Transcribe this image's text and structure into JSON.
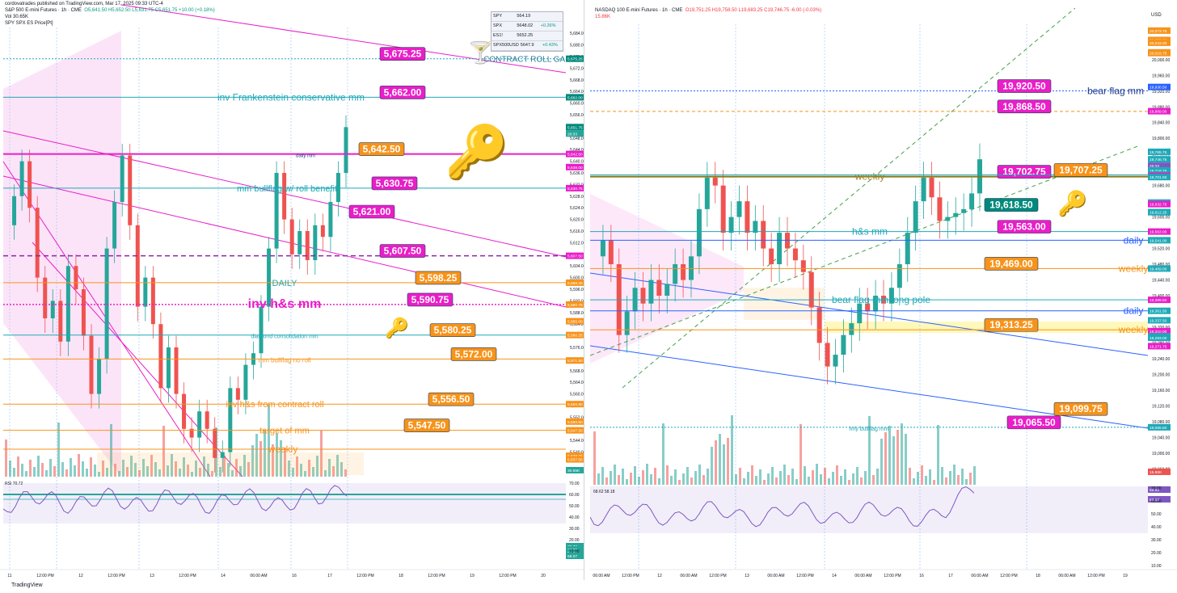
{
  "left": {
    "header": {
      "publisher": "cordovatrades published on TradingView.com, Mar 17, 2025 09:33 UTC-4",
      "title": "S&P 500 E-mini Futures · 1h · CME",
      "ohlc": "O5,641.50 H5,652.50 L5,631.75 C5,651.75 +10.00 (+0.18%)",
      "vol": "Vol  30.65K",
      "overlay": "SPY SPX ES Price[Pt]"
    },
    "quote_table": [
      {
        "sym": "SPY",
        "val": "564.19",
        "chg": ""
      },
      {
        "sym": "SPX",
        "val": "5648.02",
        "chg": "+0.26%"
      },
      {
        "sym": "ES1!",
        "val": "5652.25",
        "chg": ""
      },
      {
        "sym": "SPX500USD",
        "val": "5647.9",
        "chg": "+0.43%"
      }
    ],
    "rsi_label": "RSI  70.72",
    "x_ticks": [
      "11",
      "12:00 PM",
      "12",
      "12:00 PM",
      "13",
      "12:00 PM",
      "14",
      "06:00 AM",
      "16",
      "17",
      "12:00 PM",
      "18",
      "12:00 PM",
      "19",
      "12:00 PM",
      "20"
    ],
    "y_ticks": [
      "5,684.00",
      "5,680.00",
      "5,676.00",
      "5,672.00",
      "5,668.00",
      "5,664.00",
      "5,660.00",
      "5,656.00",
      "5,652.00",
      "5,648.00",
      "5,644.00",
      "5,640.00",
      "5,636.00",
      "5,632.00",
      "5,628.00",
      "5,624.00",
      "5,620.00",
      "5,616.00",
      "5,612.00",
      "5,608.00",
      "5,604.00",
      "5,600.00",
      "5,596.00",
      "5,592.00",
      "5,588.00",
      "5,584.00",
      "5,580.00",
      "5,576.00",
      "5,572.00",
      "5,568.00",
      "5,564.00",
      "5,560.00",
      "5,556.00",
      "5,552.00",
      "5,548.00",
      "5,544.00",
      "5,540.00"
    ],
    "rsi_ticks": [
      "70.00",
      "60.00",
      "50.00",
      "40.00",
      "30.00",
      "20.00",
      "10.00"
    ],
    "axis_tags": [
      "5,675.25",
      "5,662.00",
      "5,651.75",
      "26:33",
      "5,642.50",
      "5,638.00",
      "5,630.75",
      "5,607.50",
      "5,598.25",
      "5,590.75",
      "5,585.00",
      "5,580.25",
      "5,571.50",
      "5,556.50",
      "5,550.50",
      "5,547.50",
      "5,538.75",
      "5,537.50",
      "30.65K",
      "70.72",
      "62.00",
      "58.31",
      "58.07"
    ],
    "levels": [
      {
        "price": "5,675.25",
        "note": "CONTRACT ROLL GAP"
      },
      {
        "price": "5,662.00",
        "note": "inv Frankenstein conservative mm"
      },
      {
        "price": "5,642.50",
        "note": "daily mm"
      },
      {
        "price": "5,630.75",
        "note": "mm bullflag w/ roll benefit"
      },
      {
        "price": "5,621.00",
        "note": ""
      },
      {
        "price": "5,607.50",
        "note": ""
      },
      {
        "price": "5,598.25",
        "note": "DAILY"
      },
      {
        "price": "5,590.75",
        "note": "inv h&s mm"
      },
      {
        "price": "5,580.25",
        "note": "diamond consolidation mm"
      },
      {
        "price": "5,572.00",
        "note": "mm bullflag no roll"
      },
      {
        "price": "5,556.50",
        "note": "inv h&s from contract roll"
      },
      {
        "price": "5,547.50",
        "note": "target of mm"
      },
      {
        "price": "",
        "note": "weekly"
      }
    ]
  },
  "right": {
    "header": {
      "title": "NASDAQ 100 E-mini Futures · 1h · CME",
      "ohlc": "O19,751.25 H19,758.50 L19,683.25 C19,746.75 -6.00 (-0.03%)",
      "vol": "15.86K",
      "currency": "USD"
    },
    "rsi_label": "68.62  58.18",
    "x_ticks": [
      "06:00 AM",
      "12:00 PM",
      "12",
      "06:00 AM",
      "12:00 PM",
      "13",
      "06:00 AM",
      "12:00 PM",
      "14",
      "06:00 AM",
      "12:00 PM",
      "16",
      "17",
      "06:00 AM",
      "12:00 PM",
      "18",
      "06:00 AM",
      "12:00 PM",
      "19"
    ],
    "y_ticks": [
      "20,040.00",
      "20,000.00",
      "19,960.00",
      "19,920.00",
      "19,880.00",
      "19,840.00",
      "19,800.00",
      "19,760.00",
      "19,720.00",
      "19,680.00",
      "19,640.00",
      "19,600.00",
      "19,560.00",
      "19,520.00",
      "19,480.00",
      "19,440.00",
      "19,400.00",
      "19,360.00",
      "19,320.00",
      "19,280.00",
      "19,240.00",
      "19,200.00",
      "19,160.00",
      "19,120.00",
      "19,080.00",
      "19,040.00",
      "19,000.00",
      "18,960.00"
    ],
    "rsi_ticks": [
      "70.00",
      "60.00",
      "50.00",
      "40.00",
      "30.00",
      "20.00",
      "10.00"
    ],
    "axis_tags": [
      "20,073.75",
      "20,050.00",
      "20,043.00",
      "20,018.50",
      "20,016.75",
      "19,930.50",
      "19,869.00",
      "19,765.75",
      "19,746.75",
      "26:33",
      "19,718.75",
      "19,707.25",
      "19,704.75",
      "19,701.50",
      "19,636.75",
      "19,632.75",
      "19,612.50",
      "19,612.25",
      "19,563.00",
      "19,541.00",
      "19,469.00",
      "19,389.50",
      "19,361.50",
      "19,337.50",
      "19,310.00",
      "19,296.75",
      "19,293.00",
      "19,271.75",
      "19,065.50",
      "15.86K",
      "68.62",
      "58.18"
    ],
    "levels": [
      {
        "price": "19,920.50",
        "note": "bear flag mm"
      },
      {
        "price": "19,868.50",
        "note": ""
      },
      {
        "price": "19,702.75",
        "note": "weekly"
      },
      {
        "price": "19,707.25",
        "note": ""
      },
      {
        "price": "19,618.50",
        "note": ""
      },
      {
        "price": "19,563.00",
        "note": "h&s mm"
      },
      {
        "price": "",
        "note": "daily"
      },
      {
        "price": "19,469.00",
        "note": "weekly"
      },
      {
        "price": "",
        "note": "bear flag mm long pole"
      },
      {
        "price": "",
        "note": "daily"
      },
      {
        "price": "19,313.25",
        "note": "weekly"
      },
      {
        "price": "19,099.75",
        "note": ""
      },
      {
        "price": "19,065.50",
        "note": "hrly bullflag mm"
      }
    ]
  },
  "footer": {
    "brand": "TradingView"
  },
  "chart_data": [
    {
      "type": "candlestick",
      "title": "S&P 500 E-mini Futures · 1h · CME",
      "ylim": [
        5536,
        5686
      ],
      "x_range": [
        "11",
        "20"
      ],
      "series": [
        {
          "name": "S&P 500 E-mini Futures",
          "close_path": [
            5618,
            5628,
            5640,
            5624,
            5600,
            5586,
            5592,
            5578,
            5604,
            5596,
            5580,
            5560,
            5572,
            5610,
            5626,
            5642,
            5618,
            5590,
            5600,
            5584,
            5562,
            5576,
            5560,
            5548,
            5545,
            5554,
            5548,
            5538,
            5540,
            5562,
            5558,
            5570,
            5574,
            5590,
            5610,
            5636,
            5620,
            5608,
            5616,
            5606,
            5618,
            5614,
            5626,
            5636,
            5651.75
          ]
        }
      ]
    },
    {
      "type": "candlestick",
      "title": "NASDAQ 100 E-mini Futures · 1h · CME",
      "ylim": [
        18940,
        20090
      ],
      "x_range": [
        "06:00 AM",
        "19"
      ],
      "series": [
        {
          "name": "NASDAQ 100 E-mini Futures",
          "close_path": [
            19500,
            19540,
            19480,
            19300,
            19360,
            19420,
            19380,
            19440,
            19400,
            19430,
            19480,
            19440,
            19500,
            19620,
            19700,
            19680,
            19560,
            19600,
            19640,
            19560,
            19590,
            19520,
            19480,
            19560,
            19520,
            19490,
            19460,
            19370,
            19280,
            19220,
            19250,
            19300,
            19330,
            19380,
            19360,
            19400,
            19380,
            19420,
            19480,
            19560,
            19640,
            19700,
            19650,
            19590,
            19600,
            19610,
            19620,
            19660,
            19746.75
          ]
        }
      ]
    }
  ]
}
